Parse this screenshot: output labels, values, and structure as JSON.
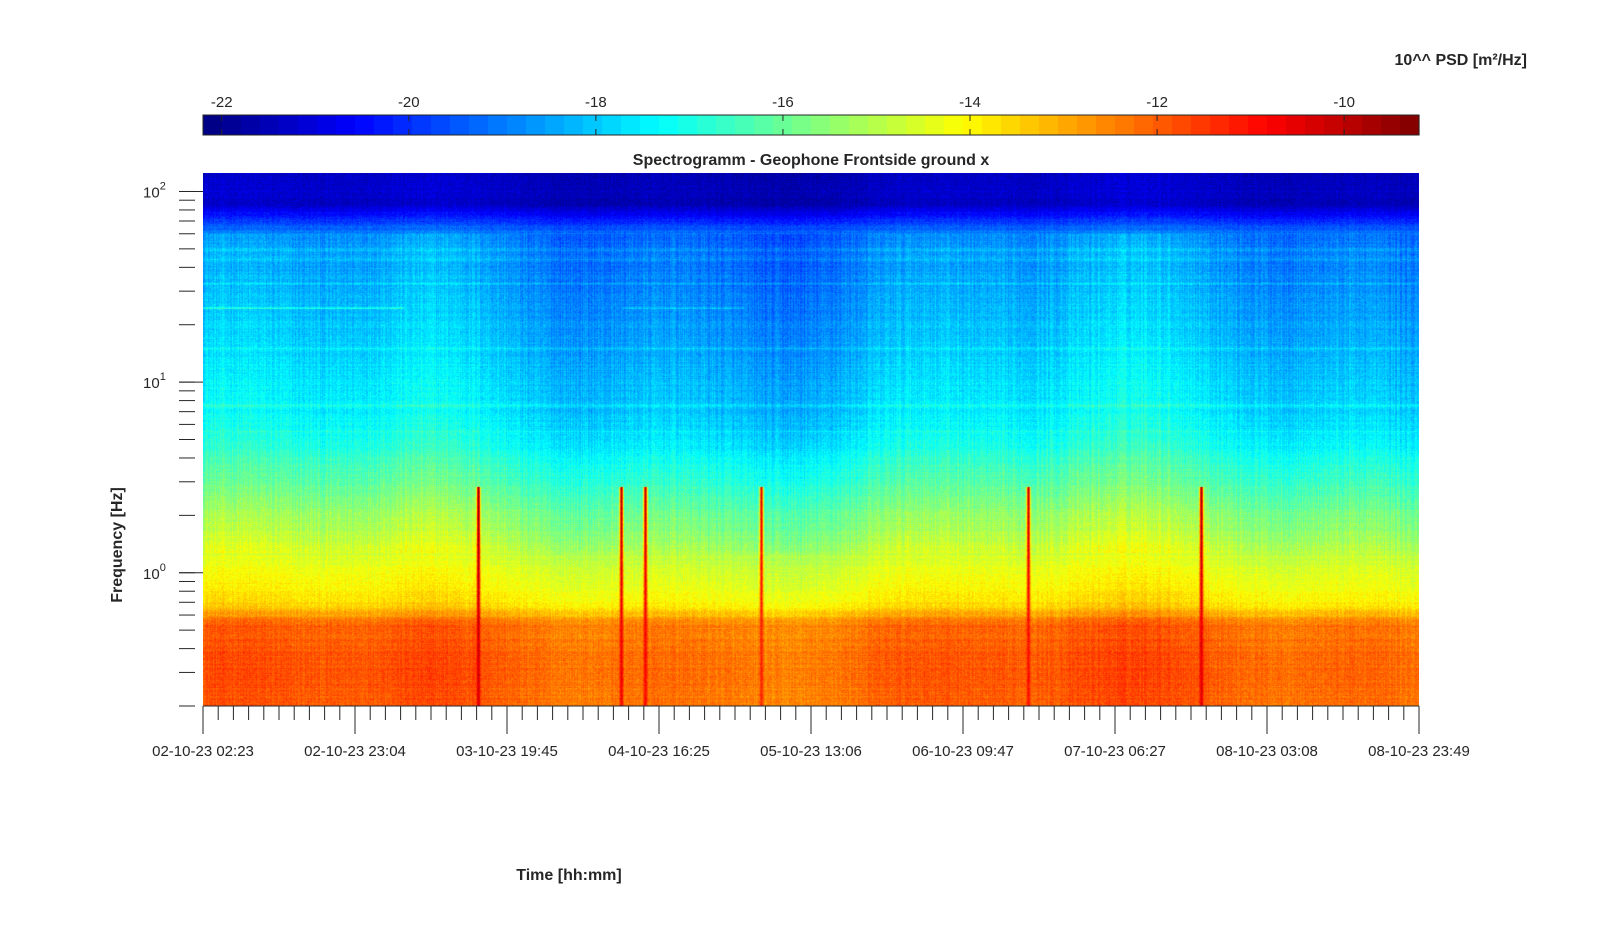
{
  "chart_data": {
    "type": "heatmap",
    "title": "Spectrogramm - Geophone Frontside ground x",
    "xlabel": "Time [hh:mm]",
    "ylabel": "Frequency [Hz]",
    "colorbar_label": "10^^ PSD [m²/Hz]",
    "colormap": "jet",
    "color_range": [
      -22.2,
      -9.2
    ],
    "colorbar_ticks": [
      -22,
      -20,
      -18,
      -16,
      -14,
      -12,
      -10
    ],
    "colorbar_tick_labels": [
      "-22",
      "-20",
      "-18",
      "-16",
      "-14",
      "-12",
      "-10"
    ],
    "y_scale": "log",
    "ylim": [
      0.2,
      125
    ],
    "y_ticks": [
      1,
      10,
      100
    ],
    "y_tick_labels": [
      {
        "base": "10",
        "exp": "0"
      },
      {
        "base": "10",
        "exp": "1"
      },
      {
        "base": "10",
        "exp": "2"
      }
    ],
    "x_tick_labels": [
      "02-10-23 02:23",
      "02-10-23 23:04",
      "03-10-23 19:45",
      "04-10-23 16:25",
      "05-10-23 13:06",
      "06-10-23 09:47",
      "07-10-23 06:27",
      "08-10-23 03:08",
      "08-10-23 23:49"
    ],
    "grid": false,
    "events": [
      {
        "time": "03-10-23 15:50",
        "peak_psd_exp": -10.2
      },
      {
        "time": "04-10-23 11:20",
        "peak_psd_exp": -10.6
      },
      {
        "time": "04-10-23 14:30",
        "peak_psd_exp": -10.8
      },
      {
        "time": "05-10-23 06:20",
        "peak_psd_exp": -11.2
      },
      {
        "time": "06-10-23 18:40",
        "peak_psd_exp": -10.9
      },
      {
        "time": "07-10-23 18:20",
        "peak_psd_exp": -10.4
      }
    ]
  }
}
